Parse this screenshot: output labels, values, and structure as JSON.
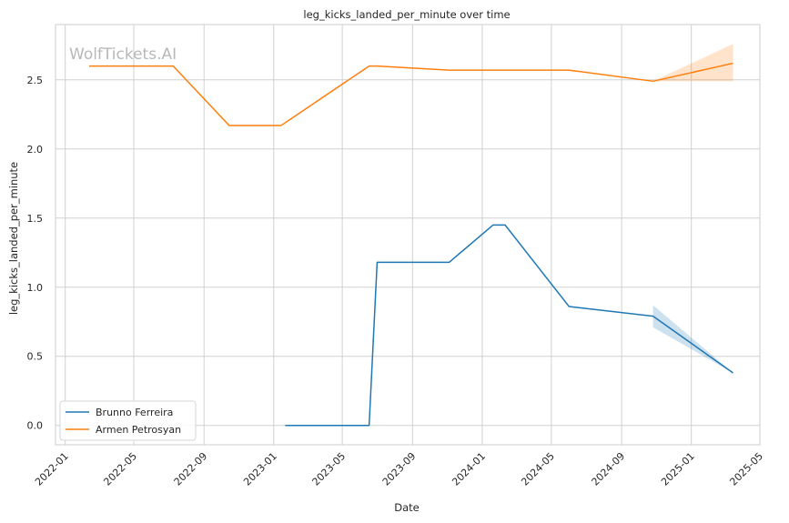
{
  "watermark": "WolfTickets.AI",
  "chart_data": {
    "type": "line",
    "title": "leg_kicks_landed_per_minute over time",
    "xlabel": "Date",
    "ylabel": "leg_kicks_landed_per_minute",
    "x_ticks": [
      "2022-01",
      "2022-05",
      "2022-09",
      "2023-01",
      "2023-05",
      "2023-09",
      "2024-01",
      "2024-05",
      "2024-09",
      "2025-01",
      "2025-05"
    ],
    "y_ticks": [
      "0.0",
      "0.5",
      "1.0",
      "1.5",
      "2.0",
      "2.5"
    ],
    "xlim": [
      "2021-12-15",
      "2025-05-01"
    ],
    "ylim": [
      -0.14,
      2.9
    ],
    "grid": true,
    "legend_position": "lower-left",
    "series": [
      {
        "name": "Brunno Ferreira",
        "color": "#1f77b4",
        "x": [
          "2023-01-21",
          "2023-06-17",
          "2023-07-01",
          "2023-11-04",
          "2024-01-20",
          "2024-02-10",
          "2024-06-01",
          "2024-10-26",
          "2025-03-15"
        ],
        "y": [
          0.0,
          0.0,
          1.18,
          1.18,
          1.45,
          1.45,
          0.86,
          0.79,
          0.38
        ],
        "band": {
          "x": [
            "2024-10-26",
            "2025-03-15"
          ],
          "lower": [
            0.71,
            0.38
          ],
          "upper": [
            0.87,
            0.38
          ]
        }
      },
      {
        "name": "Armen Petrosyan",
        "color": "#ff7f0e",
        "x": [
          "2022-02-12",
          "2022-07-09",
          "2022-10-15",
          "2023-01-14",
          "2023-06-17",
          "2023-07-01",
          "2023-11-04",
          "2024-06-01",
          "2024-10-26",
          "2025-03-15"
        ],
        "y": [
          2.6,
          2.6,
          2.17,
          2.17,
          2.6,
          2.6,
          2.57,
          2.57,
          2.49,
          2.62
        ],
        "band": {
          "x": [
            "2024-10-26",
            "2025-03-15"
          ],
          "lower": [
            2.49,
            2.49
          ],
          "upper": [
            2.49,
            2.76
          ]
        }
      }
    ]
  }
}
